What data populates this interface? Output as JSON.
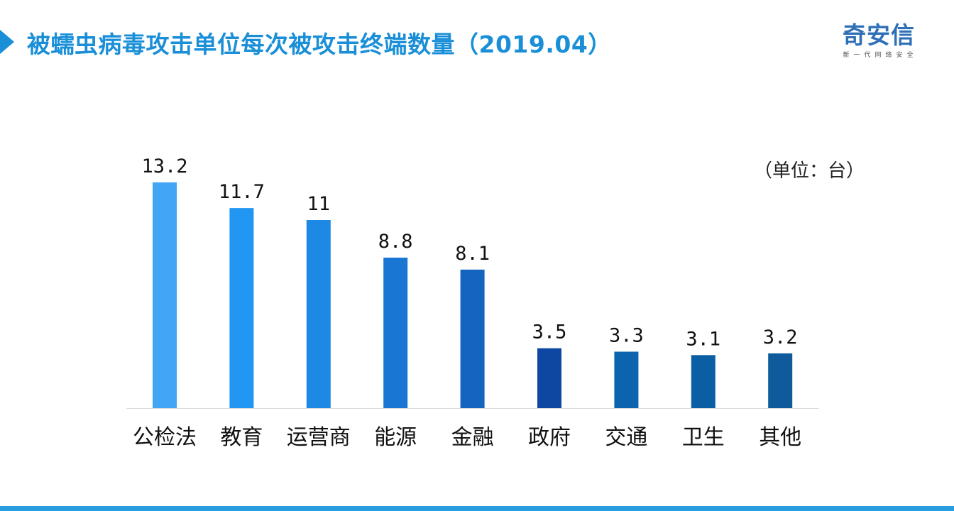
{
  "title": "被蠕虫病毒攻击单位每次被攻击终端数量（2019.04）",
  "logo": {
    "name": "奇安信",
    "tagline": "新一代网络安全"
  },
  "unit_label": "（单位：台）",
  "colors": {
    "title": "#1a8fd8",
    "logo": "#2e6fb7",
    "axis": "#d9d9d9",
    "stripe": "#2a9de0"
  },
  "chart_data": {
    "type": "bar",
    "title": "被蠕虫病毒攻击单位每次被攻击终端数量（2019.04）",
    "categories": [
      "公检法",
      "教育",
      "运营商",
      "能源",
      "金融",
      "政府",
      "交通",
      "卫生",
      "其他"
    ],
    "values": [
      13.2,
      11.7,
      11,
      8.8,
      8.1,
      3.5,
      3.3,
      3.1,
      3.2
    ],
    "value_labels": [
      "13.2",
      "11.7",
      "11",
      "8.8",
      "8.1",
      "3.5",
      "3.3",
      "3.1",
      "3.2"
    ],
    "bar_colors": [
      "#42a5f5",
      "#2196f3",
      "#1e88e5",
      "#1976d2",
      "#1565c0",
      "#0d47a1",
      "#0b64ad",
      "#0a5ea3",
      "#0e5a9a"
    ],
    "ylim": [
      0,
      13.2
    ],
    "grid": false,
    "legend": "none"
  }
}
